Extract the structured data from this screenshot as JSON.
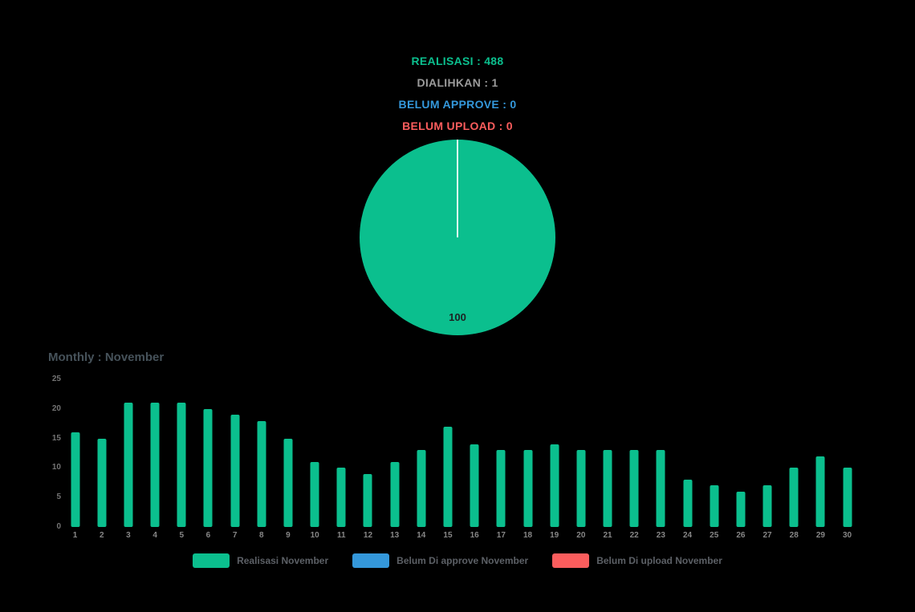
{
  "stats": {
    "realisasi": {
      "text": "REALISASI : 488",
      "color": "#0bbf8e"
    },
    "dialihkan": {
      "text": "DIALIHKAN : 1",
      "color": "#9b9b9b"
    },
    "belum_approve": {
      "text": "BELUM APPROVE : 0",
      "color": "#3498db"
    },
    "belum_upload": {
      "text": "BELUM UPLOAD : 0",
      "color": "#fb5d5d"
    }
  },
  "chart_data": [
    {
      "type": "pie",
      "slices": [
        {
          "label": "100",
          "value": 100,
          "color": "#0bbf8e"
        }
      ],
      "legend_position": "none"
    },
    {
      "type": "bar",
      "title": "Monthly : November",
      "categories": [
        "1",
        "2",
        "3",
        "4",
        "5",
        "6",
        "7",
        "8",
        "9",
        "10",
        "11",
        "12",
        "13",
        "14",
        "15",
        "16",
        "17",
        "18",
        "19",
        "20",
        "21",
        "22",
        "23",
        "24",
        "25",
        "26",
        "27",
        "28",
        "29",
        "30"
      ],
      "series": [
        {
          "name": "Realisasi November",
          "color": "#0bbf8e",
          "values": [
            16,
            15,
            21,
            21,
            21,
            20,
            19,
            18,
            15,
            11,
            10,
            9,
            11,
            13,
            17,
            14,
            13,
            13,
            14,
            13,
            13,
            13,
            13,
            8,
            7,
            6,
            7,
            10,
            12,
            10
          ]
        }
      ],
      "xlabel": "",
      "ylabel": "",
      "ylim": [
        0,
        25
      ],
      "yticks": [
        0,
        5,
        10,
        15,
        20,
        25
      ],
      "grid": false,
      "legend_position": "bottom",
      "legend": [
        {
          "label": "Realisasi November",
          "color": "#0bbf8e"
        },
        {
          "label": "Belum Di approve November",
          "color": "#3498db"
        },
        {
          "label": "Belum Di upload November",
          "color": "#fb5d5d"
        }
      ]
    }
  ]
}
